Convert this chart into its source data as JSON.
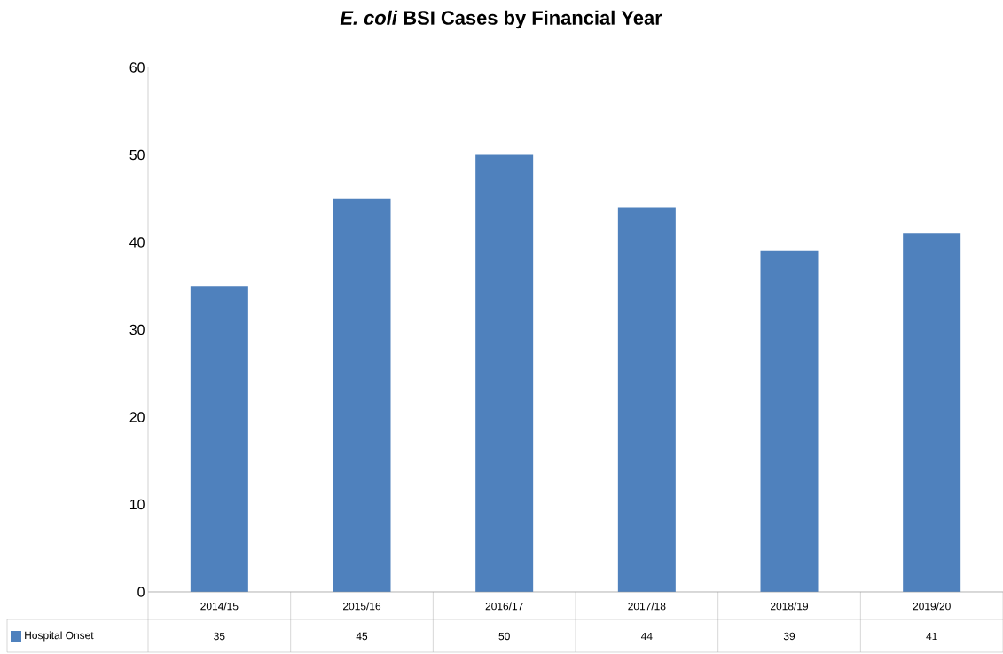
{
  "chart_data": {
    "type": "bar",
    "title": "*E. coli* BSI Cases by Financial Year",
    "categories": [
      "2014/15",
      "2015/16",
      "2016/17",
      "2017/18",
      "2018/19",
      "2019/20"
    ],
    "series": [
      {
        "name": "Hospital Onset",
        "color": "#4f81bd",
        "values": [
          35,
          45,
          50,
          44,
          39,
          41
        ]
      }
    ],
    "ylim": [
      0,
      60
    ],
    "yticks": [
      0,
      10,
      20,
      30,
      40,
      50,
      60
    ],
    "grid": false,
    "legend": "bottom left",
    "data_labels": true
  }
}
